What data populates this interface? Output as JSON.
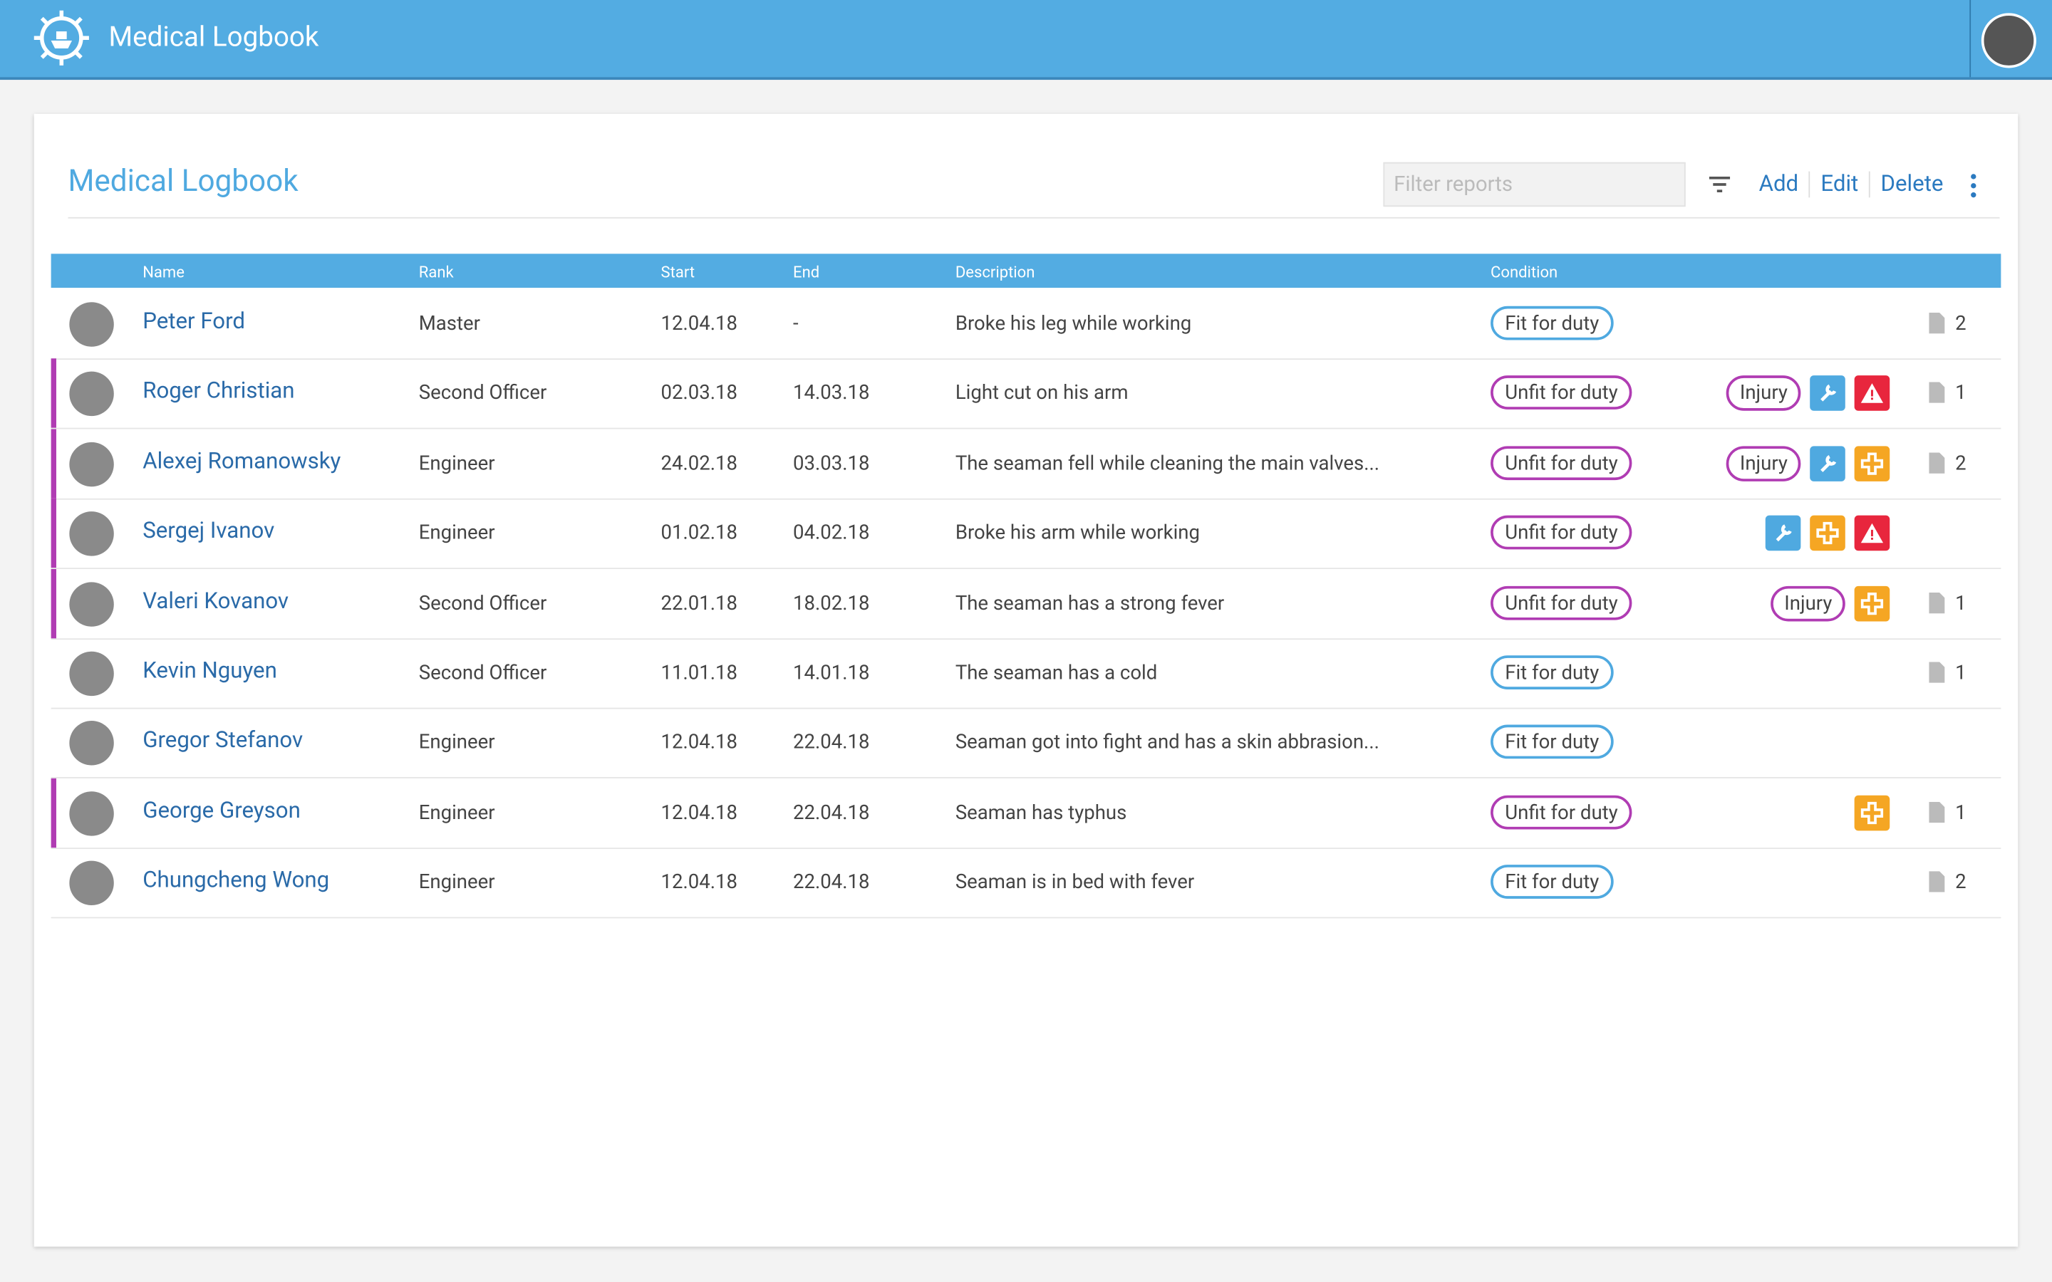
{
  "header": {
    "title": "Medical Logbook"
  },
  "page": {
    "title": "Medical Logbook",
    "filter_placeholder": "Filter reports",
    "actions": [
      "Add",
      "Edit",
      "Delete"
    ]
  },
  "table": {
    "columns": [
      "Name",
      "Rank",
      "Start",
      "End",
      "Description",
      "Condition"
    ],
    "rows": [
      {
        "name": "Peter Ford",
        "rank": "Master",
        "start": "12.04.18",
        "end": "-",
        "description": "Broke his leg while working",
        "condition": "Fit for duty",
        "files": "2"
      },
      {
        "name": "Roger Christian",
        "rank": "Second Officer",
        "start": "02.03.18",
        "end": "14.03.18",
        "description": "Light cut on his arm",
        "condition": "Unfit for duty",
        "injury": "Injury",
        "files": "1"
      },
      {
        "name": "Alexej Romanowsky",
        "rank": "Engineer",
        "start": "24.02.18",
        "end": "03.03.18",
        "description": "The seaman fell while cleaning the main valves...",
        "condition": "Unfit for duty",
        "injury": "Injury",
        "files": "2"
      },
      {
        "name": "Sergej Ivanov",
        "rank": "Engineer",
        "start": "01.02.18",
        "end": "04.02.18",
        "description": "Broke his arm while working",
        "condition": "Unfit for duty"
      },
      {
        "name": "Valeri Kovanov",
        "rank": "Second Officer",
        "start": "22.01.18",
        "end": "18.02.18",
        "description": "The seaman has a strong fever",
        "condition": "Unfit for duty",
        "injury": "Injury",
        "files": "1"
      },
      {
        "name": "Kevin Nguyen",
        "rank": "Second Officer",
        "start": "11.01.18",
        "end": "14.01.18",
        "description": "The seaman has a cold",
        "condition": "Fit for duty",
        "files": "1"
      },
      {
        "name": "Gregor Stefanov",
        "rank": "Engineer",
        "start": "12.04.18",
        "end": "22.04.18",
        "description": "Seaman got into fight and has a skin abbrasion...",
        "condition": "Fit for duty"
      },
      {
        "name": "George Greyson",
        "rank": "Engineer",
        "start": "12.04.18",
        "end": "22.04.18",
        "description": "Seaman has typhus",
        "condition": "Unfit for duty",
        "files": "1"
      },
      {
        "name": "Chungcheng Wong",
        "rank": "Engineer",
        "start": "12.04.18",
        "end": "22.04.18",
        "description": "Seaman is in bed with fever",
        "condition": "Fit for duty",
        "files": "2"
      }
    ]
  }
}
